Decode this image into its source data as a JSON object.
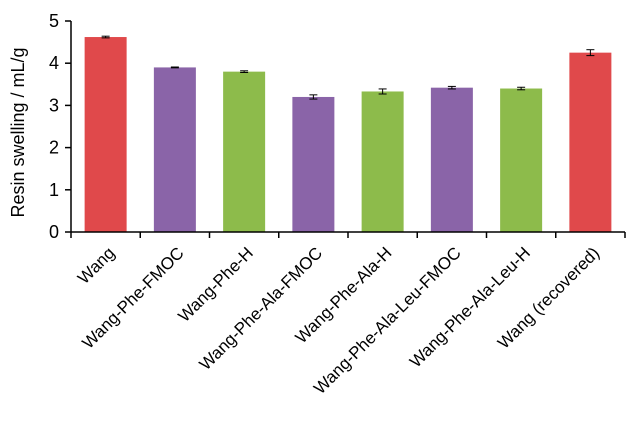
{
  "chart_data": {
    "type": "bar",
    "title": "",
    "xlabel": "",
    "ylabel": "Resin swelling  / mL/g",
    "ylim": [
      0,
      5
    ],
    "yticks": [
      "0",
      "1",
      "2",
      "3",
      "4",
      "5"
    ],
    "grid": false,
    "legend": "none",
    "categories": [
      "Wang",
      "Wang-Phe-FMOC",
      "Wang-Phe-H",
      "Wang-Phe-Ala-FMOC",
      "Wang-Phe-Ala-H",
      "Wang-Phe-Ala-Leu-FMOC",
      "Wang-Phe-Ala-Leu-H",
      "Wang (recovered)"
    ],
    "values": [
      4.62,
      3.9,
      3.8,
      3.2,
      3.33,
      3.42,
      3.4,
      4.25
    ],
    "errors": [
      0.02,
      0.01,
      0.02,
      0.05,
      0.06,
      0.03,
      0.03,
      0.07
    ],
    "colors": [
      "#e0494b",
      "#8a64a8",
      "#8dbb4b",
      "#8a64a8",
      "#8dbb4b",
      "#8a64a8",
      "#8dbb4b",
      "#e0494b"
    ]
  }
}
